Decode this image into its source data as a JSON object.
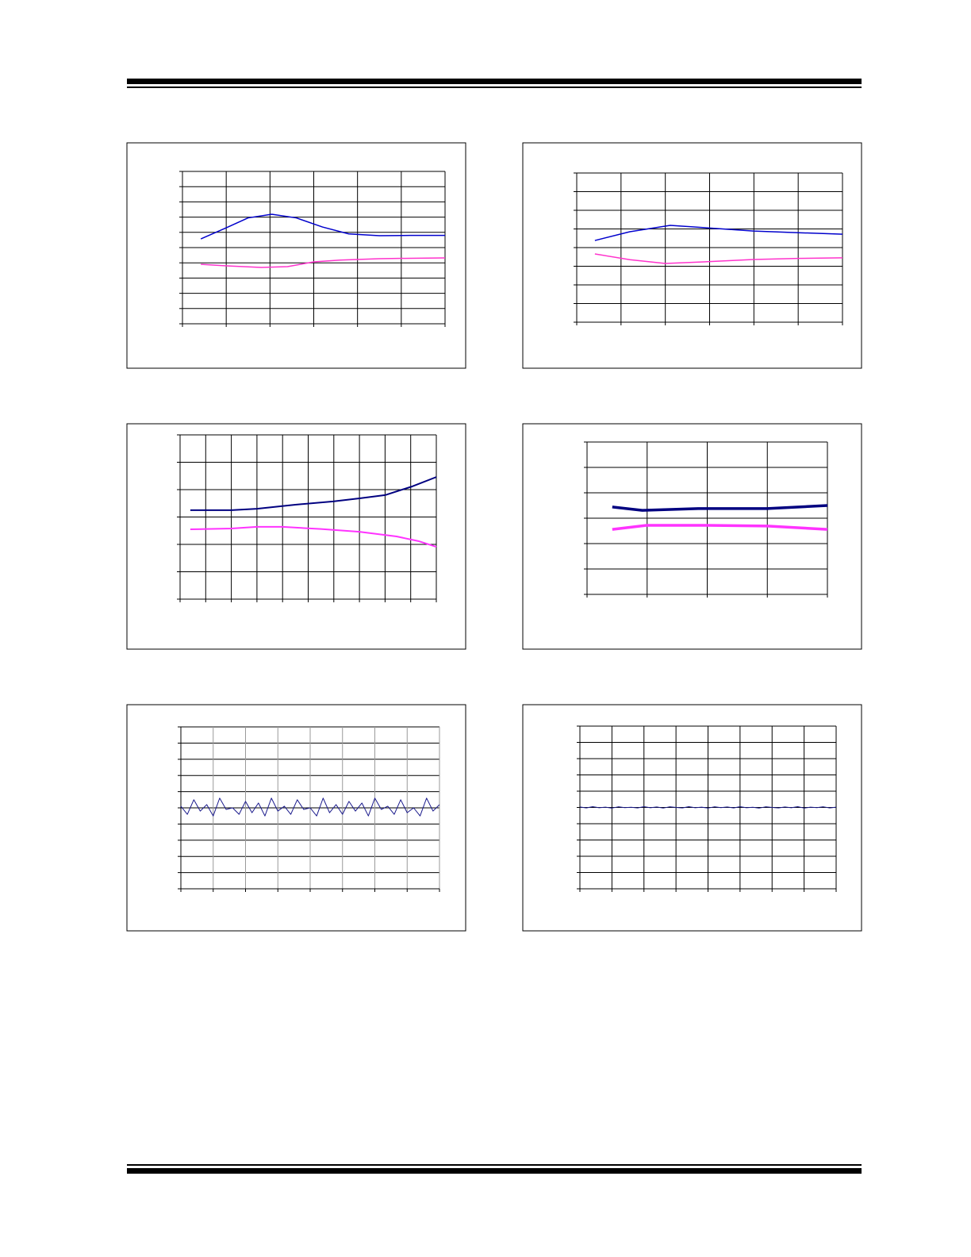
{
  "chart_data": [
    {
      "type": "line",
      "xlim": [
        0,
        6
      ],
      "ylim": [
        0,
        10
      ],
      "xticks": [
        0,
        1,
        2,
        3,
        4,
        5,
        6
      ],
      "yticks": [
        0,
        1,
        2,
        3,
        4,
        5,
        6,
        7,
        8,
        9,
        10
      ],
      "grid": true,
      "grid_color": "#000000",
      "series": [
        {
          "color": "#0000cc",
          "width": 1.5,
          "x": [
            0.42,
            1.0,
            1.5,
            2.04,
            2.6,
            3.2,
            3.8,
            4.5,
            5.2,
            6.0
          ],
          "values": [
            5.57,
            6.3,
            6.95,
            7.19,
            6.95,
            6.35,
            5.9,
            5.78,
            5.8,
            5.8
          ]
        },
        {
          "color": "#ff33cc",
          "width": 1.5,
          "x": [
            0.42,
            1.0,
            1.8,
            2.4,
            3.0,
            3.6,
            4.5,
            5.2,
            6.0
          ],
          "values": [
            3.9,
            3.8,
            3.7,
            3.75,
            4.06,
            4.18,
            4.27,
            4.3,
            4.32
          ]
        }
      ]
    },
    {
      "type": "line",
      "xlim": [
        0,
        6
      ],
      "ylim": [
        0,
        8
      ],
      "xticks": [
        0,
        1,
        2,
        3,
        4,
        5,
        6
      ],
      "yticks": [
        0,
        1,
        2,
        3,
        4,
        5,
        6,
        7,
        8
      ],
      "grid": true,
      "grid_color": "#000000",
      "series": [
        {
          "color": "#0000cc",
          "width": 1.5,
          "x": [
            0.41,
            1.2,
            2.11,
            3.0,
            3.99,
            5.0,
            6.0
          ],
          "values": [
            4.38,
            4.85,
            5.19,
            5.05,
            4.89,
            4.8,
            4.72
          ]
        },
        {
          "color": "#ff33cc",
          "width": 1.5,
          "x": [
            0.41,
            1.2,
            2.0,
            3.0,
            3.99,
            5.0,
            6.0
          ],
          "values": [
            3.66,
            3.35,
            3.15,
            3.25,
            3.36,
            3.42,
            3.45
          ]
        }
      ]
    },
    {
      "type": "line",
      "xlim": [
        0,
        10
      ],
      "ylim": [
        0,
        6
      ],
      "xticks": [
        0,
        1,
        2,
        3,
        4,
        5,
        6,
        7,
        8,
        9,
        10
      ],
      "yticks": [
        0,
        1,
        2,
        3,
        4,
        5,
        6
      ],
      "grid": true,
      "grid_color": "#000000",
      "series": [
        {
          "color": "#000080",
          "width": 2,
          "x": [
            0.4,
            2.0,
            3.0,
            4.5,
            5.97,
            7.0,
            8.0,
            9.07,
            10.0
          ],
          "values": [
            3.25,
            3.25,
            3.3,
            3.45,
            3.57,
            3.68,
            3.8,
            4.12,
            4.46
          ]
        },
        {
          "color": "#ff33ff",
          "width": 2,
          "x": [
            0.4,
            2.0,
            3.0,
            4.0,
            5.5,
            7.0,
            8.45,
            9.3,
            10.0
          ],
          "values": [
            2.55,
            2.58,
            2.64,
            2.64,
            2.56,
            2.46,
            2.29,
            2.12,
            1.91
          ]
        }
      ]
    },
    {
      "type": "line",
      "xlim": [
        0,
        4
      ],
      "ylim": [
        0,
        6
      ],
      "xticks": [
        0,
        1,
        2,
        3,
        4
      ],
      "yticks": [
        0,
        1,
        2,
        3,
        4,
        5,
        6
      ],
      "grid": true,
      "grid_color": "#000000",
      "series": [
        {
          "color": "#000080",
          "width": 3.5,
          "x": [
            0.42,
            0.92,
            1.85,
            3.0,
            4.0
          ],
          "values": [
            3.44,
            3.31,
            3.38,
            3.38,
            3.5
          ]
        },
        {
          "color": "#ff33ff",
          "width": 3.5,
          "x": [
            0.42,
            0.99,
            2.0,
            3.0,
            4.0
          ],
          "values": [
            2.56,
            2.72,
            2.72,
            2.69,
            2.56
          ]
        }
      ]
    },
    {
      "type": "line",
      "xlim": [
        0,
        8
      ],
      "ylim": [
        0,
        10
      ],
      "xticks": [
        0,
        1,
        2,
        3,
        4,
        5,
        6,
        7,
        8
      ],
      "yticks": [
        0,
        1,
        2,
        3,
        4,
        5,
        6,
        7,
        8,
        9,
        10
      ],
      "grid": true,
      "grid_color": "#000000",
      "xgrid_color": "#999999",
      "series": [
        {
          "color": "#1a1a8c",
          "width": 1,
          "x": [
            0,
            0.2,
            0.4,
            0.6,
            0.8,
            1,
            1.2,
            1.4,
            1.6,
            1.8,
            2,
            2.2,
            2.4,
            2.6,
            2.8,
            3,
            3.2,
            3.4,
            3.6,
            3.8,
            4,
            4.2,
            4.4,
            4.6,
            4.8,
            5,
            5.2,
            5.4,
            5.6,
            5.8,
            6,
            6.2,
            6.4,
            6.6,
            6.8,
            7,
            7.2,
            7.4,
            7.6,
            7.8,
            8
          ],
          "values": [
            5.1,
            4.6,
            5.5,
            4.8,
            5.2,
            4.5,
            5.6,
            4.9,
            5.0,
            4.6,
            5.4,
            4.7,
            5.3,
            4.5,
            5.6,
            4.8,
            5.1,
            4.6,
            5.5,
            4.9,
            5.0,
            4.5,
            5.6,
            4.7,
            5.2,
            4.6,
            5.4,
            4.8,
            5.3,
            4.5,
            5.6,
            4.9,
            5.1,
            4.6,
            5.5,
            4.7,
            5.0,
            4.5,
            5.6,
            4.8,
            5.2
          ]
        }
      ]
    },
    {
      "type": "line",
      "xlim": [
        0,
        8
      ],
      "ylim": [
        0,
        10
      ],
      "xticks": [
        0,
        1,
        2,
        3,
        4,
        5,
        6,
        7,
        8
      ],
      "yticks": [
        0,
        1,
        2,
        3,
        4,
        5,
        6,
        7,
        8,
        9,
        10
      ],
      "grid": true,
      "grid_color": "#000000",
      "series": [
        {
          "color": "#1a1a8c",
          "width": 1,
          "x": [
            0,
            0.2,
            0.4,
            0.6,
            0.8,
            1,
            1.2,
            1.4,
            1.6,
            1.8,
            2,
            2.2,
            2.4,
            2.6,
            2.8,
            3,
            3.2,
            3.4,
            3.6,
            3.8,
            4,
            4.2,
            4.4,
            4.6,
            4.8,
            5,
            5.2,
            5.4,
            5.6,
            5.8,
            6,
            6.2,
            6.4,
            6.6,
            6.8,
            7,
            7.2,
            7.4,
            7.6,
            7.8,
            8
          ],
          "values": [
            5.03,
            4.97,
            5.05,
            4.98,
            5.02,
            4.96,
            5.04,
            4.99,
            5.01,
            4.97,
            5.05,
            4.98,
            5.03,
            4.96,
            5.04,
            5.0,
            4.97,
            5.05,
            4.98,
            5.02,
            4.96,
            5.04,
            4.99,
            5.03,
            4.97,
            5.05,
            4.98,
            5.01,
            4.96,
            5.04,
            5.0,
            4.97,
            5.03,
            4.98,
            5.05,
            4.96,
            5.02,
            4.99,
            5.04,
            4.97,
            5.02
          ]
        }
      ]
    }
  ]
}
